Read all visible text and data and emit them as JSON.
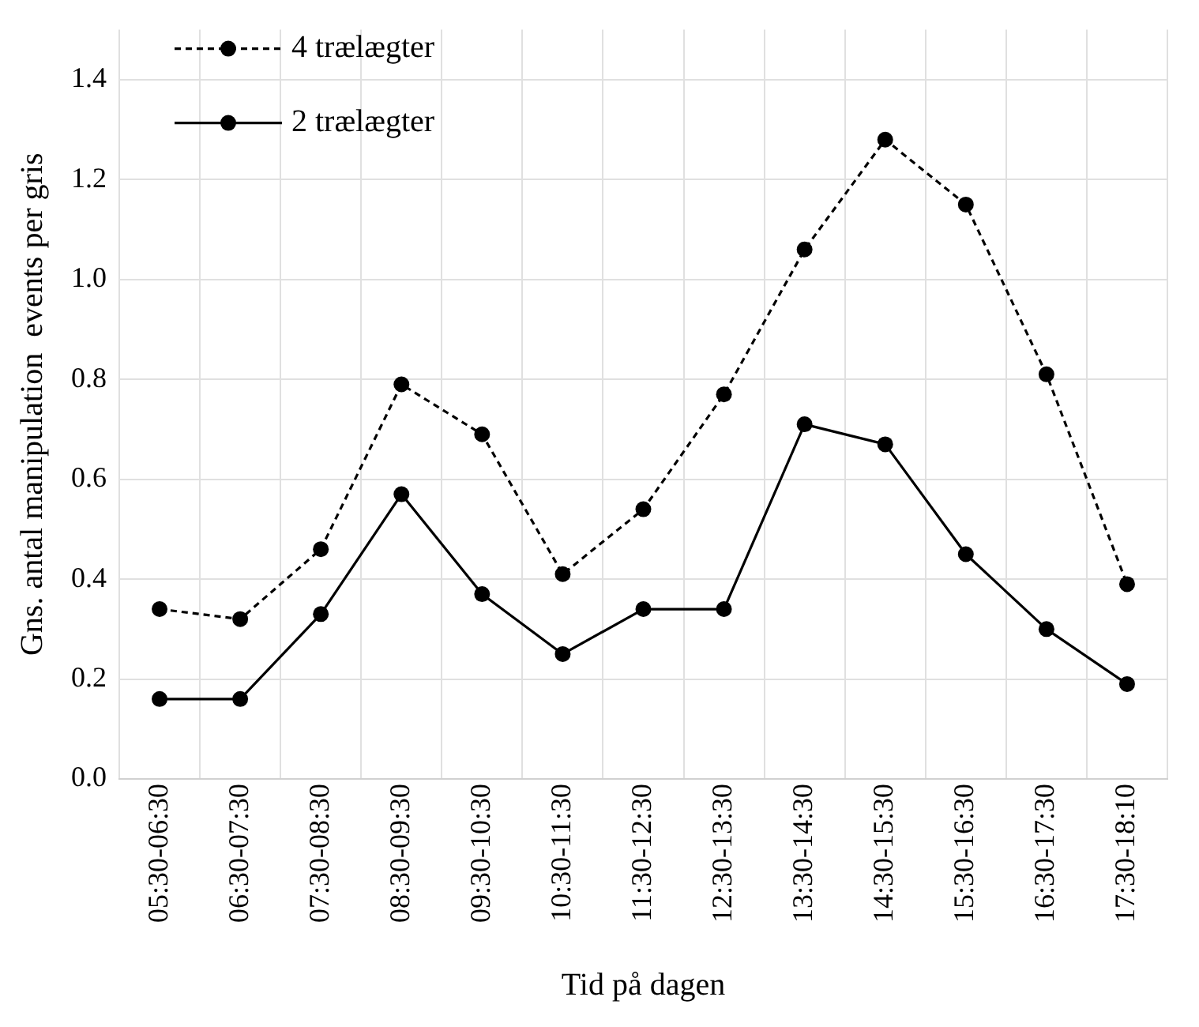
{
  "chart_data": {
    "type": "line",
    "xlabel": "Tid på dagen",
    "ylabel": "Gns. antal manipulation  events per gris",
    "categories": [
      "05:30-06:30",
      "06:30-07:30",
      "07:30-08:30",
      "08:30-09:30",
      "09:30-10:30",
      "10:30-11:30",
      "11:30-12:30",
      "12:30-13:30",
      "13:30-14:30",
      "14:30-15:30",
      "15:30-16:30",
      "16:30-17:30",
      "17:30-18:10"
    ],
    "series": [
      {
        "name": "4 trælægter",
        "color": "#000000",
        "line_style": "dashed",
        "values": [
          0.34,
          0.32,
          0.46,
          0.79,
          0.69,
          0.41,
          0.54,
          0.77,
          1.06,
          1.28,
          1.15,
          0.81,
          0.39
        ]
      },
      {
        "name": "2 trælægter",
        "color": "#000000",
        "line_style": "solid",
        "values": [
          0.16,
          0.16,
          0.33,
          0.57,
          0.37,
          0.25,
          0.34,
          0.34,
          0.71,
          0.67,
          0.45,
          0.3,
          0.19
        ]
      }
    ],
    "ylim": [
      0,
      1.5
    ],
    "yticks": [
      {
        "value": 0,
        "label": "0.0"
      },
      {
        "value": 0.2,
        "label": "0.2"
      },
      {
        "value": 0.4,
        "label": "0.4"
      },
      {
        "value": 0.6,
        "label": "0.6"
      },
      {
        "value": 0.8,
        "label": "0.8"
      },
      {
        "value": 1,
        "label": "1.0"
      },
      {
        "value": 1.2,
        "label": "1.2"
      },
      {
        "value": 1.4,
        "label": "1.4"
      }
    ],
    "grid": true,
    "legend": "top left",
    "marker": "circle"
  }
}
